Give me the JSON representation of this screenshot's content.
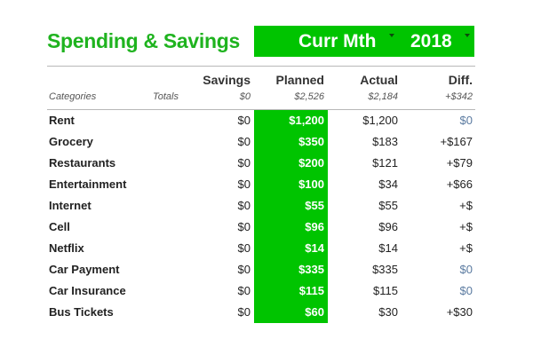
{
  "title": "Spending & Savings",
  "selectors": {
    "month": "Curr Mth",
    "year": "2018"
  },
  "headers": {
    "savings": "Savings",
    "planned": "Planned",
    "actual": "Actual",
    "diff": "Diff."
  },
  "subheader": {
    "categories": "Categories",
    "totals": "Totals",
    "savings": "$0",
    "planned": "$2,526",
    "actual": "$2,184",
    "diff": "+$342"
  },
  "colors": {
    "accent": "#00c400",
    "title": "#1fb31f",
    "zero_diff": "#5a7aa0"
  },
  "rows": [
    {
      "name": "Rent",
      "savings": "$0",
      "planned": "$1,200",
      "actual": "$1,200",
      "diff": "$0",
      "diff_zero": true
    },
    {
      "name": "Grocery",
      "savings": "$0",
      "planned": "$350",
      "actual": "$183",
      "diff": "+$167",
      "diff_zero": false
    },
    {
      "name": "Restaurants",
      "savings": "$0",
      "planned": "$200",
      "actual": "$121",
      "diff": "+$79",
      "diff_zero": false
    },
    {
      "name": "Entertainment",
      "savings": "$0",
      "planned": "$100",
      "actual": "$34",
      "diff": "+$66",
      "diff_zero": false
    },
    {
      "name": "Internet",
      "savings": "$0",
      "planned": "$55",
      "actual": "$55",
      "diff": "+$",
      "diff_zero": false
    },
    {
      "name": "Cell",
      "savings": "$0",
      "planned": "$96",
      "actual": "$96",
      "diff": "+$",
      "diff_zero": false
    },
    {
      "name": "Netflix",
      "savings": "$0",
      "planned": "$14",
      "actual": "$14",
      "diff": "+$",
      "diff_zero": false
    },
    {
      "name": "Car Payment",
      "savings": "$0",
      "planned": "$335",
      "actual": "$335",
      "diff": "$0",
      "diff_zero": true
    },
    {
      "name": "Car Insurance",
      "savings": "$0",
      "planned": "$115",
      "actual": "$115",
      "diff": "$0",
      "diff_zero": true
    },
    {
      "name": "Bus Tickets",
      "savings": "$0",
      "planned": "$60",
      "actual": "$30",
      "diff": "+$30",
      "diff_zero": false
    }
  ]
}
